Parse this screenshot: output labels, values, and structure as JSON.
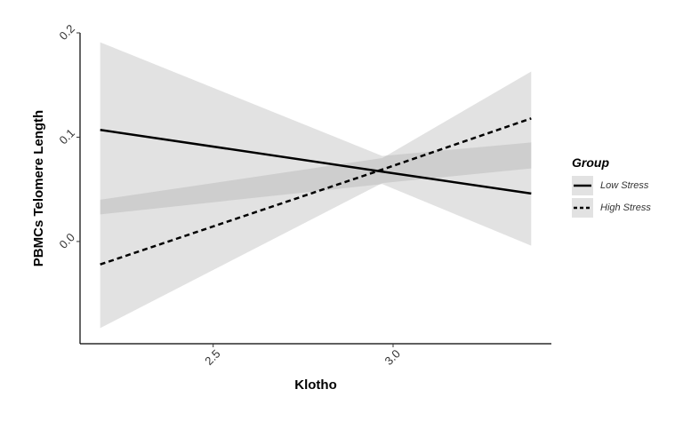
{
  "chart_data": {
    "type": "line",
    "x_label": "Klotho",
    "y_label": "PBMCs Telomere Length",
    "x": [
      2.186,
      2.97,
      3.384
    ],
    "series": [
      {
        "name": "Low Stress",
        "color": "#000000",
        "dash": false,
        "values": [
          0.107,
          0.067,
          0.046
        ],
        "lower": [
          0.026,
          0.055,
          -0.004
        ],
        "upper": [
          0.191,
          0.082,
          0.095
        ]
      },
      {
        "name": "High Stress",
        "color": "#000000",
        "dash": true,
        "values": [
          -0.022,
          0.069,
          0.118
        ],
        "lower": [
          -0.083,
          0.056,
          0.07
        ],
        "upper": [
          0.04,
          0.08,
          0.163
        ]
      }
    ],
    "band_color": "#9e9e9e",
    "xlim": [
      2.13,
      3.44
    ],
    "ylim": [
      -0.098,
      0.2
    ],
    "xticks": [
      2.5,
      {
        "value": 3.0,
        "label": "3.0"
      }
    ],
    "yticks": [
      {
        "value": 0.0,
        "label": "0.0"
      },
      0.1,
      0.2
    ],
    "legend": {
      "title": "Group",
      "position": "right"
    },
    "grid": false
  }
}
